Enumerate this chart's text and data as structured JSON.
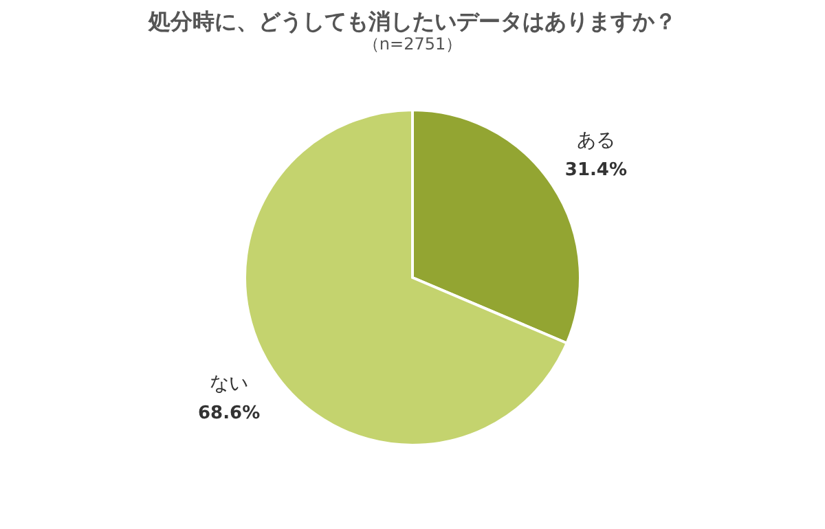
{
  "chart_data": {
    "type": "pie",
    "title": "処分時に、どうしても消したいデータはありますか？",
    "subtitle": "（n=2751）",
    "categories": [
      "ある",
      "ない"
    ],
    "values": [
      31.4,
      68.6
    ],
    "colors": [
      "#93a532",
      "#c4d36e"
    ],
    "value_labels": [
      "31.4%",
      "68.6%"
    ],
    "legend": false
  }
}
